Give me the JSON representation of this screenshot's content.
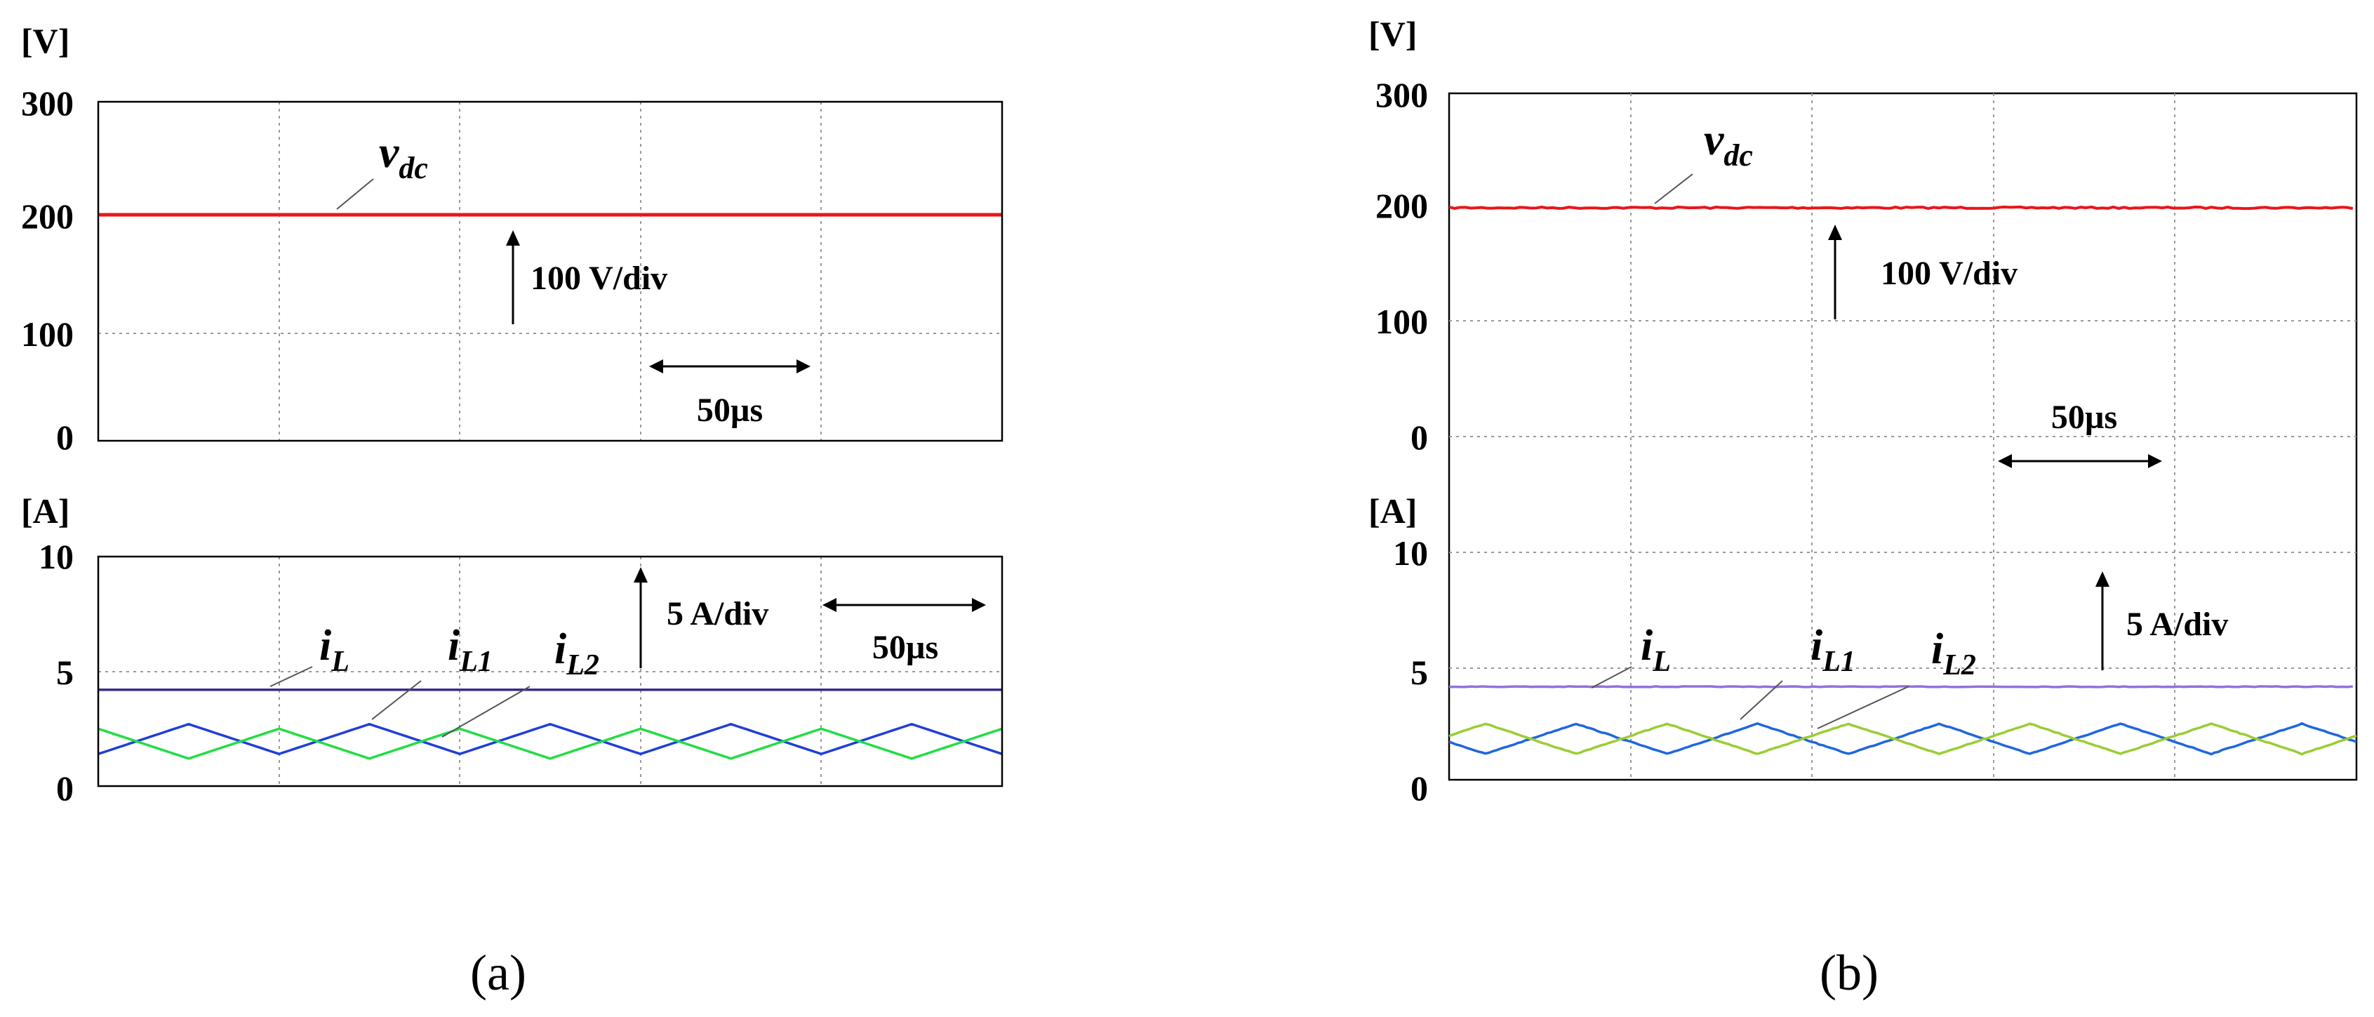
{
  "figure": {
    "panels": [
      {
        "caption": "(a)",
        "style": "sim",
        "voltage": {
          "unit": "[V]",
          "ticks": [
            "300",
            "200",
            "100",
            "0"
          ],
          "note": "100 V/div",
          "time_note": "50µs",
          "signal": {
            "base": "v",
            "sub": "dc"
          }
        },
        "current": {
          "unit": "[A]",
          "ticks": [
            "10",
            "5",
            "0"
          ],
          "note": "5 A/div",
          "time_note": "50µs",
          "signals": [
            {
              "base": "i",
              "sub": "L"
            },
            {
              "base": "i",
              "sub": "L1"
            },
            {
              "base": "i",
              "sub": "L2"
            }
          ]
        }
      },
      {
        "caption": "(b)",
        "style": "exp",
        "voltage": {
          "unit": "[V]",
          "ticks": [
            "300",
            "200",
            "100",
            "0"
          ],
          "note": "100 V/div",
          "time_note": "50µs",
          "signal": {
            "base": "v",
            "sub": "dc"
          }
        },
        "current": {
          "unit": "[A]",
          "ticks": [
            "10",
            "5",
            "0"
          ],
          "note": "5 A/div",
          "time_note": "",
          "signals": [
            {
              "base": "i",
              "sub": "L"
            },
            {
              "base": "i",
              "sub": "L1"
            },
            {
              "base": "i",
              "sub": "L2"
            }
          ]
        }
      }
    ]
  },
  "chart_data": [
    {
      "type": "line",
      "panel": "a-voltage",
      "ylabel": "[V]",
      "ylim": [
        0,
        300
      ],
      "xlim": [
        0,
        250
      ],
      "x_units": "µs",
      "yticks": [
        0,
        100,
        200,
        300
      ],
      "grid": true,
      "series": [
        {
          "name": "vdc",
          "color": "#e8161b",
          "x": [
            0,
            250
          ],
          "values": [
            200,
            200
          ]
        }
      ]
    },
    {
      "type": "line",
      "panel": "a-current",
      "ylabel": "[A]",
      "ylim": [
        0,
        10
      ],
      "xlim": [
        0,
        250
      ],
      "x_units": "µs",
      "yticks": [
        0,
        5,
        10
      ],
      "grid": true,
      "series": [
        {
          "name": "iL",
          "color": "#3b2a8c",
          "x": [
            0,
            250
          ],
          "values": [
            4.2,
            4.2
          ]
        },
        {
          "name": "iL1",
          "color": "#1f3fd6",
          "period_us": 50,
          "min": 1.4,
          "max": 2.7,
          "phase_us": 0
        },
        {
          "name": "iL2",
          "color": "#22dd44",
          "period_us": 50,
          "min": 1.2,
          "max": 2.5,
          "phase_us": 25
        }
      ]
    },
    {
      "type": "line",
      "panel": "b-voltage",
      "ylabel": "[V]",
      "ylim": [
        0,
        300
      ],
      "xlim": [
        0,
        250
      ],
      "x_units": "µs",
      "yticks": [
        0,
        100,
        200,
        300
      ],
      "grid": true,
      "series": [
        {
          "name": "vdc",
          "color": "#e8161b",
          "x": [
            0,
            250
          ],
          "values": [
            200,
            200
          ]
        }
      ]
    },
    {
      "type": "line",
      "panel": "b-current",
      "ylabel": "[A]",
      "ylim": [
        0,
        10
      ],
      "xlim": [
        0,
        250
      ],
      "x_units": "µs",
      "yticks": [
        0,
        5,
        10
      ],
      "grid": true,
      "series": [
        {
          "name": "iL",
          "color": "#9370db",
          "x": [
            0,
            250
          ],
          "values": [
            4.2,
            4.2
          ]
        },
        {
          "name": "iL1",
          "color": "#1f66e0",
          "period_us": 50,
          "min": 1.3,
          "max": 2.6,
          "phase_us": 10
        },
        {
          "name": "iL2",
          "color": "#9acd32",
          "period_us": 50,
          "min": 1.3,
          "max": 2.6,
          "phase_us": 35
        }
      ]
    }
  ]
}
